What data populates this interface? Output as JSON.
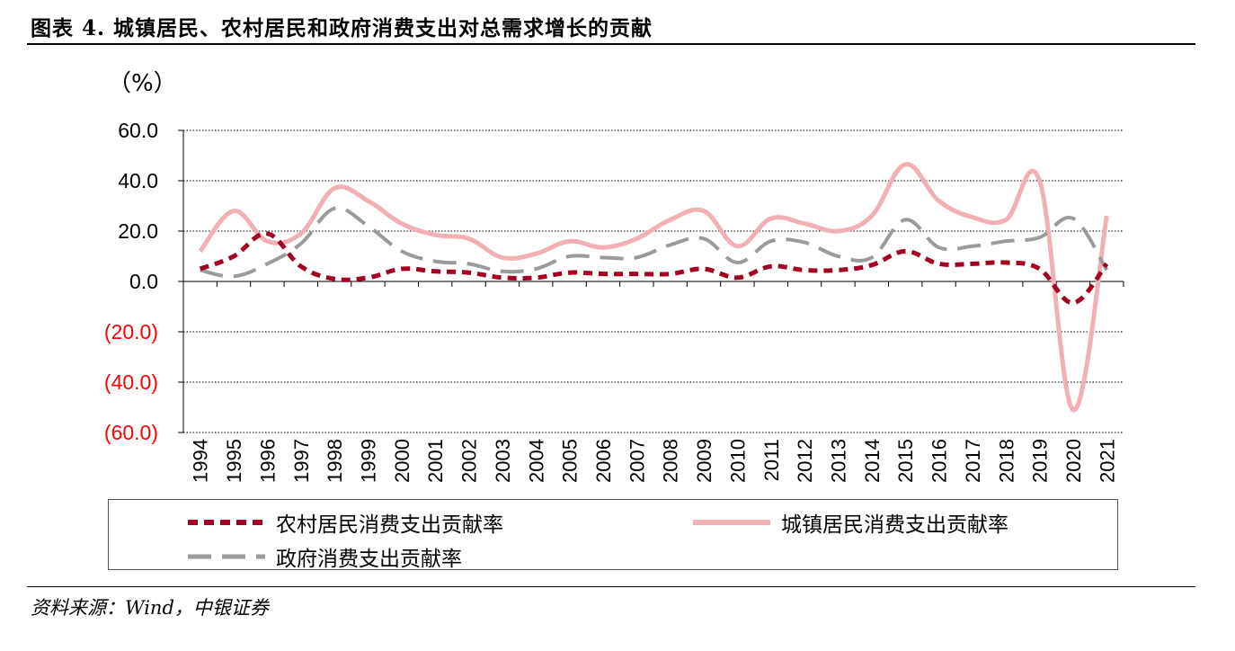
{
  "title": "图表 4. 城镇居民、农村居民和政府消费支出对总需求增长的贡献",
  "unit_label": "（%）",
  "source": "资料来源：Wind，中银证券",
  "colors": {
    "rural": "#A50021",
    "urban": "#F2AFB4",
    "gov": "#9A9A9A",
    "negative_tick": "#FF0000"
  },
  "chart_data": {
    "type": "line",
    "x": [
      "1994",
      "1995",
      "1996",
      "1997",
      "1998",
      "1999",
      "2000",
      "2001",
      "2002",
      "2003",
      "2004",
      "2005",
      "2006",
      "2007",
      "2008",
      "2009",
      "2010",
      "2011",
      "2012",
      "2013",
      "2014",
      "2015",
      "2016",
      "2017",
      "2018",
      "2019",
      "2020",
      "2021"
    ],
    "ylim": [
      -60,
      60
    ],
    "yticks": [
      60,
      40,
      20,
      0,
      -20,
      -40,
      -60
    ],
    "ytick_labels": [
      "60.0",
      "40.0",
      "20.0",
      "0.0",
      "(20.0)",
      "(40.0)",
      "(60.0)"
    ],
    "grid": "horizontal dotted",
    "legend_position": "bottom",
    "series": [
      {
        "name": "农村居民消费支出贡献率",
        "key": "rural",
        "values": [
          5,
          10,
          19,
          6,
          1,
          1.5,
          5,
          4,
          3.5,
          1.5,
          1.5,
          3.5,
          3,
          3,
          3,
          5,
          1.5,
          6,
          4.5,
          4.5,
          6.5,
          12,
          7,
          7,
          7.5,
          5,
          -8.5,
          7
        ]
      },
      {
        "name": "城镇居民消费支出贡献率",
        "key": "urban",
        "values": [
          12,
          28,
          16,
          19,
          37,
          32,
          23,
          18.5,
          17,
          9.5,
          11,
          16,
          13.5,
          17,
          24.5,
          28,
          14,
          25,
          23,
          20,
          26,
          46.5,
          32,
          25.5,
          24.5,
          40,
          -51,
          26
        ]
      },
      {
        "name": "政府消费支出贡献率",
        "key": "gov",
        "values": [
          4.5,
          2,
          7,
          15,
          29,
          22,
          12,
          8,
          7,
          4,
          5,
          10,
          9.5,
          9.5,
          14.5,
          17,
          7.5,
          16,
          15.5,
          10,
          9.5,
          24.5,
          13.5,
          14,
          16,
          17.5,
          25,
          4.5
        ]
      }
    ]
  }
}
